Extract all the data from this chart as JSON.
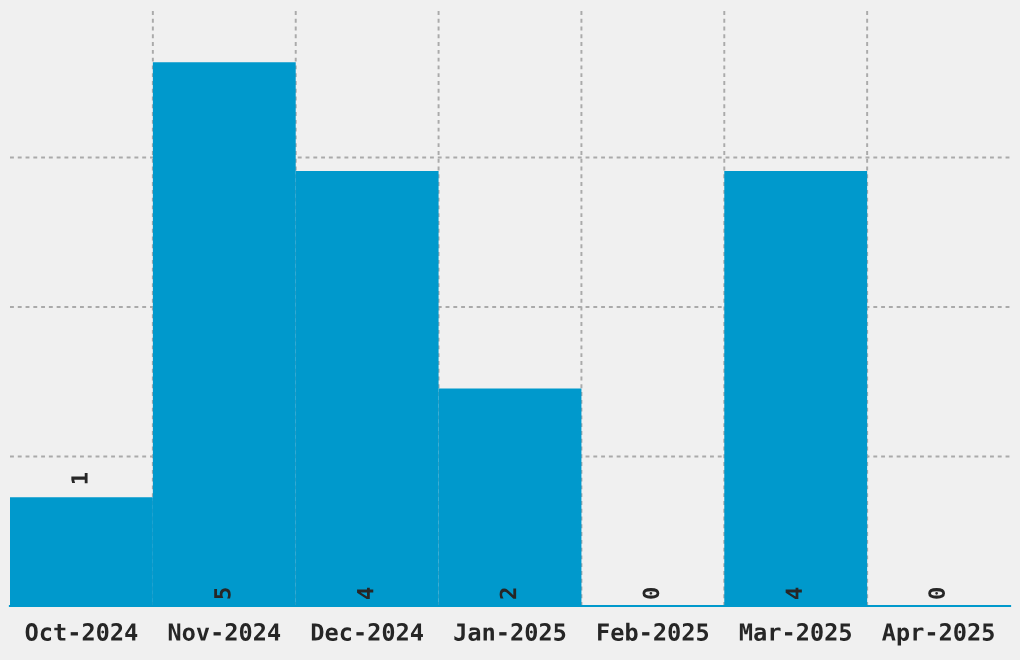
{
  "chart_data": {
    "type": "bar",
    "categories": [
      "Oct-2024",
      "Nov-2024",
      "Dec-2024",
      "Jan-2025",
      "Feb-2025",
      "Mar-2025",
      "Apr-2025"
    ],
    "values": [
      1,
      5,
      4,
      2,
      0,
      4,
      0
    ],
    "color": "#0099cc",
    "ylim": [
      0,
      5.5
    ],
    "yticks": [
      {
        "value": 1.375,
        "label": null
      },
      {
        "value": 2.75,
        "label": null
      },
      {
        "value": 4.125,
        "label": null
      }
    ],
    "tick_labels": "x",
    "grid": true,
    "data_labels": true
  }
}
